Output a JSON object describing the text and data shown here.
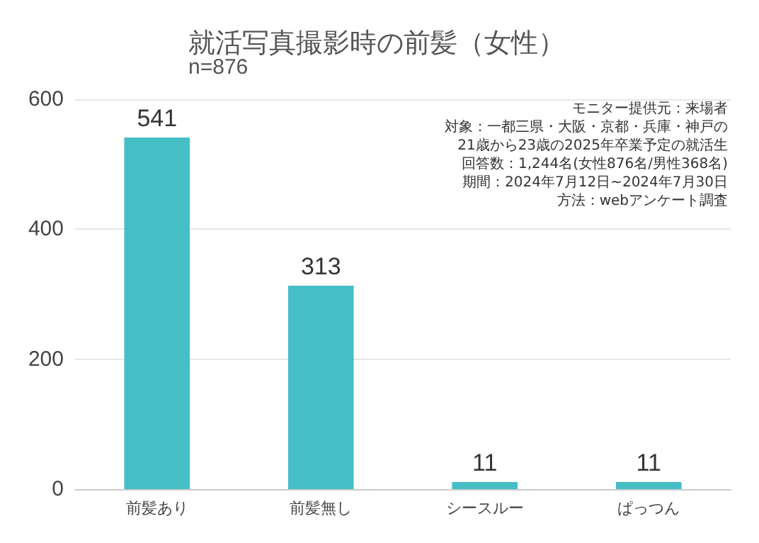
{
  "chart_data": {
    "type": "bar",
    "title": "就活写真撮影時の前髪（女性）",
    "subtitle": "n=876",
    "categories": [
      "前髪あり",
      "前髪無し",
      "シースルー",
      "ぱっつん"
    ],
    "values": [
      541,
      313,
      11,
      11
    ],
    "color": "#45bec6",
    "ylim": [
      0,
      600
    ],
    "yticks": [
      0,
      200,
      400,
      600
    ],
    "grid": "y",
    "data_labels": true,
    "annotations": [
      "モニター提供元：来場者",
      "対象：一都三県・大阪・京都・兵庫・神戸の",
      "21歳から23歳の2025年卒業予定の就活生",
      "回答数：1,244名(女性876名/男性368名)",
      "期間：2024年7月12日~2024年7月30日",
      "方法：webアンケート調査"
    ]
  }
}
